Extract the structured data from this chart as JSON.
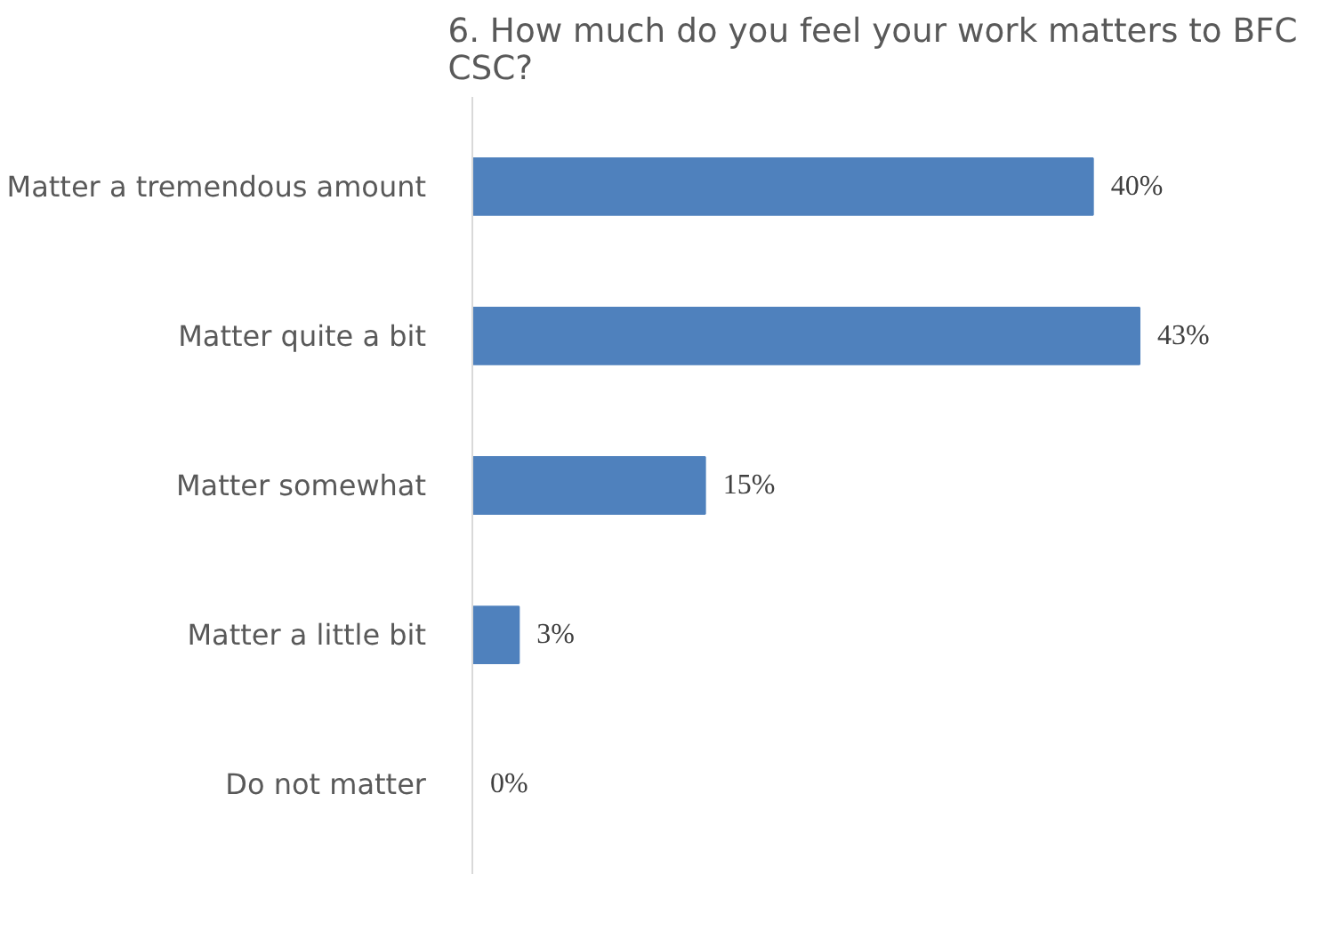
{
  "chart_data": {
    "type": "bar",
    "orientation": "horizontal",
    "title": "6. How much do you feel your work matters to BFC\nCSC?",
    "categories": [
      "Matter a tremendous amount",
      "Matter quite a bit",
      "Matter somewhat",
      "Matter a little bit",
      "Do not matter"
    ],
    "values": [
      40,
      43,
      15,
      3,
      0
    ],
    "color": "#4f81bd",
    "value_labels": [
      "40%",
      "43%",
      "15%",
      "3%",
      "0%"
    ],
    "grid": false
  }
}
